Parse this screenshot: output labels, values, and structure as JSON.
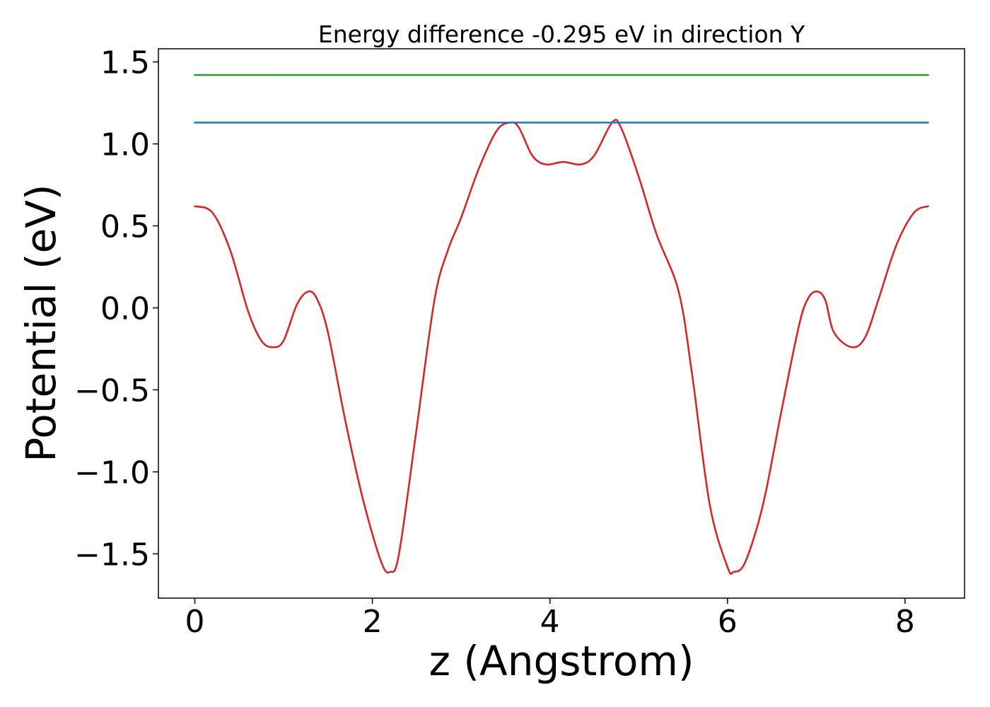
{
  "chart_data": {
    "type": "line",
    "title": "Energy difference -0.295 eV in direction Y",
    "xlabel": "z (Angstrom)",
    "ylabel": "Potential (eV)",
    "xlim": [
      -0.41,
      8.67
    ],
    "ylim": [
      -1.77,
      1.58
    ],
    "xticks": [
      0,
      2,
      4,
      6,
      8
    ],
    "xtick_labels": [
      "0",
      "2",
      "4",
      "6",
      "8"
    ],
    "yticks": [
      -1.5,
      -1.0,
      -0.5,
      0.0,
      0.5,
      1.0,
      1.5
    ],
    "ytick_labels": [
      "−1.5",
      "−1.0",
      "−0.5",
      "0.0",
      "0.5",
      "1.0",
      "1.5"
    ],
    "grid": false,
    "legend": "none",
    "series": [
      {
        "color": "#d62728",
        "x": [
          0.0,
          0.2,
          0.4,
          0.6,
          0.75,
          0.88,
          1.0,
          1.15,
          1.28,
          1.38,
          1.5,
          1.7,
          1.9,
          2.1,
          2.2,
          2.3,
          2.5,
          2.7,
          2.85,
          3.0,
          3.2,
          3.4,
          3.55,
          3.65,
          3.8,
          3.95,
          4.15,
          4.35,
          4.5,
          4.7,
          4.8,
          5.0,
          5.2,
          5.45,
          5.6,
          5.8,
          6.0,
          6.07,
          6.2,
          6.4,
          6.6,
          6.8,
          6.9,
          7.0,
          7.1,
          7.2,
          7.4,
          7.55,
          7.7,
          7.9,
          8.1,
          8.26
        ],
        "y": [
          0.62,
          0.58,
          0.35,
          -0.02,
          -0.2,
          -0.24,
          -0.2,
          0.02,
          0.1,
          0.05,
          -0.15,
          -0.7,
          -1.18,
          -1.55,
          -1.61,
          -1.5,
          -0.73,
          0.05,
          0.35,
          0.55,
          0.85,
          1.08,
          1.13,
          1.1,
          0.93,
          0.875,
          0.89,
          0.875,
          0.93,
          1.13,
          1.1,
          0.8,
          0.45,
          0.1,
          -0.4,
          -1.2,
          -1.58,
          -1.61,
          -1.55,
          -1.2,
          -0.65,
          -0.12,
          0.05,
          0.1,
          0.05,
          -0.15,
          -0.24,
          -0.18,
          0.05,
          0.38,
          0.58,
          0.62
        ]
      },
      {
        "color": "#1f77b4",
        "x": [
          0.0,
          8.26
        ],
        "y": [
          1.13,
          1.13
        ]
      },
      {
        "color": "#2ca02c",
        "x": [
          0.0,
          8.26
        ],
        "y": [
          1.42,
          1.42
        ]
      }
    ]
  }
}
